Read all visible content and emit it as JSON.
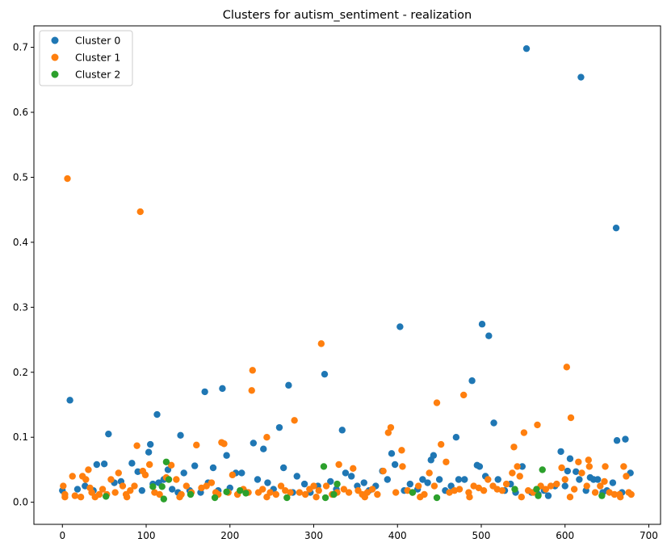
{
  "chart_data": {
    "type": "scatter",
    "title": "Clusters for autism_sentiment - realization",
    "xlabel": "",
    "ylabel": "",
    "xlim": [
      -34,
      714
    ],
    "ylim": [
      -0.034,
      0.733
    ],
    "x_ticks": [
      0,
      100,
      200,
      300,
      400,
      500,
      600,
      700
    ],
    "y_ticks": [
      0.0,
      0.1,
      0.2,
      0.3,
      0.4,
      0.5,
      0.6,
      0.7
    ],
    "grid": false,
    "legend_position": "top-left",
    "series": [
      {
        "name": "Cluster 0",
        "color": "#1f77b4",
        "points": [
          [
            0,
            0.018
          ],
          [
            9,
            0.157
          ],
          [
            18,
            0.02
          ],
          [
            27,
            0.025
          ],
          [
            37,
            0.018
          ],
          [
            41,
            0.058
          ],
          [
            50,
            0.059
          ],
          [
            55,
            0.105
          ],
          [
            62,
            0.03
          ],
          [
            70,
            0.032
          ],
          [
            83,
            0.06
          ],
          [
            90,
            0.047
          ],
          [
            95,
            0.018
          ],
          [
            103,
            0.077
          ],
          [
            105,
            0.089
          ],
          [
            108,
            0.028
          ],
          [
            113,
            0.135
          ],
          [
            115,
            0.03
          ],
          [
            121,
            0.035
          ],
          [
            126,
            0.05
          ],
          [
            131,
            0.02
          ],
          [
            138,
            0.015
          ],
          [
            141,
            0.103
          ],
          [
            145,
            0.045
          ],
          [
            152,
            0.018
          ],
          [
            158,
            0.056
          ],
          [
            165,
            0.015
          ],
          [
            170,
            0.17
          ],
          [
            174,
            0.03
          ],
          [
            180,
            0.053
          ],
          [
            186,
            0.018
          ],
          [
            191,
            0.175
          ],
          [
            196,
            0.072
          ],
          [
            200,
            0.022
          ],
          [
            207,
            0.045
          ],
          [
            214,
            0.045
          ],
          [
            220,
            0.015
          ],
          [
            228,
            0.091
          ],
          [
            233,
            0.035
          ],
          [
            240,
            0.082
          ],
          [
            245,
            0.03
          ],
          [
            252,
            0.02
          ],
          [
            259,
            0.115
          ],
          [
            264,
            0.053
          ],
          [
            270,
            0.18
          ],
          [
            275,
            0.015
          ],
          [
            280,
            0.04
          ],
          [
            289,
            0.028
          ],
          [
            296,
            0.015
          ],
          [
            305,
            0.025
          ],
          [
            313,
            0.197
          ],
          [
            320,
            0.032
          ],
          [
            327,
            0.02
          ],
          [
            334,
            0.111
          ],
          [
            338,
            0.045
          ],
          [
            345,
            0.04
          ],
          [
            352,
            0.025
          ],
          [
            360,
            0.03
          ],
          [
            366,
            0.018
          ],
          [
            374,
            0.025
          ],
          [
            382,
            0.048
          ],
          [
            388,
            0.035
          ],
          [
            393,
            0.075
          ],
          [
            397,
            0.058
          ],
          [
            403,
            0.27
          ],
          [
            408,
            0.018
          ],
          [
            415,
            0.028
          ],
          [
            424,
            0.02
          ],
          [
            430,
            0.035
          ],
          [
            436,
            0.03
          ],
          [
            440,
            0.065
          ],
          [
            443,
            0.072
          ],
          [
            450,
            0.035
          ],
          [
            457,
            0.018
          ],
          [
            464,
            0.025
          ],
          [
            470,
            0.1
          ],
          [
            473,
            0.035
          ],
          [
            480,
            0.035
          ],
          [
            489,
            0.187
          ],
          [
            495,
            0.057
          ],
          [
            498,
            0.055
          ],
          [
            501,
            0.274
          ],
          [
            505,
            0.04
          ],
          [
            509,
            0.256
          ],
          [
            515,
            0.122
          ],
          [
            520,
            0.035
          ],
          [
            528,
            0.018
          ],
          [
            535,
            0.028
          ],
          [
            541,
            0.015
          ],
          [
            549,
            0.055
          ],
          [
            554,
            0.698
          ],
          [
            560,
            0.015
          ],
          [
            568,
            0.012
          ],
          [
            575,
            0.018
          ],
          [
            580,
            0.01
          ],
          [
            588,
            0.025
          ],
          [
            595,
            0.078
          ],
          [
            600,
            0.025
          ],
          [
            603,
            0.048
          ],
          [
            606,
            0.067
          ],
          [
            613,
            0.047
          ],
          [
            617,
            0.035
          ],
          [
            619,
            0.654
          ],
          [
            625,
            0.018
          ],
          [
            630,
            0.038
          ],
          [
            634,
            0.035
          ],
          [
            639,
            0.035
          ],
          [
            645,
            0.015
          ],
          [
            650,
            0.018
          ],
          [
            657,
            0.03
          ],
          [
            661,
            0.422
          ],
          [
            662,
            0.095
          ],
          [
            668,
            0.015
          ],
          [
            672,
            0.097
          ],
          [
            678,
            0.045
          ]
        ]
      },
      {
        "name": "Cluster 1",
        "color": "#ff7f0e",
        "points": [
          [
            1,
            0.025
          ],
          [
            3,
            0.008
          ],
          [
            6,
            0.498
          ],
          [
            12,
            0.04
          ],
          [
            15,
            0.01
          ],
          [
            22,
            0.008
          ],
          [
            24,
            0.04
          ],
          [
            28,
            0.035
          ],
          [
            31,
            0.05
          ],
          [
            35,
            0.015
          ],
          [
            39,
            0.008
          ],
          [
            44,
            0.012
          ],
          [
            48,
            0.02
          ],
          [
            53,
            0.012
          ],
          [
            58,
            0.035
          ],
          [
            63,
            0.015
          ],
          [
            67,
            0.045
          ],
          [
            72,
            0.025
          ],
          [
            76,
            0.012
          ],
          [
            81,
            0.018
          ],
          [
            86,
            0.025
          ],
          [
            89,
            0.087
          ],
          [
            93,
            0.447
          ],
          [
            96,
            0.048
          ],
          [
            99,
            0.042
          ],
          [
            104,
            0.058
          ],
          [
            110,
            0.015
          ],
          [
            116,
            0.012
          ],
          [
            124,
            0.038
          ],
          [
            130,
            0.057
          ],
          [
            136,
            0.035
          ],
          [
            142,
            0.012
          ],
          [
            148,
            0.025
          ],
          [
            154,
            0.015
          ],
          [
            160,
            0.088
          ],
          [
            166,
            0.022
          ],
          [
            172,
            0.025
          ],
          [
            178,
            0.03
          ],
          [
            183,
            0.015
          ],
          [
            190,
            0.092
          ],
          [
            193,
            0.09
          ],
          [
            198,
            0.015
          ],
          [
            203,
            0.042
          ],
          [
            209,
            0.012
          ],
          [
            216,
            0.02
          ],
          [
            222,
            0.015
          ],
          [
            226,
            0.172
          ],
          [
            227,
            0.203
          ],
          [
            234,
            0.015
          ],
          [
            239,
            0.02
          ],
          [
            244,
            0.1
          ],
          [
            248,
            0.015
          ],
          [
            255,
            0.012
          ],
          [
            261,
            0.025
          ],
          [
            266,
            0.018
          ],
          [
            272,
            0.015
          ],
          [
            277,
            0.126
          ],
          [
            283,
            0.015
          ],
          [
            290,
            0.012
          ],
          [
            295,
            0.02
          ],
          [
            300,
            0.025
          ],
          [
            306,
            0.018
          ],
          [
            309,
            0.244
          ],
          [
            315,
            0.025
          ],
          [
            322,
            0.012
          ],
          [
            328,
            0.015
          ],
          [
            330,
            0.058
          ],
          [
            336,
            0.02
          ],
          [
            342,
            0.015
          ],
          [
            347,
            0.052
          ],
          [
            353,
            0.018
          ],
          [
            358,
            0.012
          ],
          [
            364,
            0.015
          ],
          [
            370,
            0.02
          ],
          [
            376,
            0.012
          ],
          [
            383,
            0.048
          ],
          [
            389,
            0.107
          ],
          [
            392,
            0.115
          ],
          [
            398,
            0.015
          ],
          [
            405,
            0.08
          ],
          [
            406,
            0.055
          ],
          [
            412,
            0.018
          ],
          [
            418,
            0.015
          ],
          [
            425,
            0.025
          ],
          [
            432,
            0.012
          ],
          [
            438,
            0.045
          ],
          [
            444,
            0.025
          ],
          [
            447,
            0.153
          ],
          [
            452,
            0.089
          ],
          [
            458,
            0.062
          ],
          [
            462,
            0.015
          ],
          [
            468,
            0.018
          ],
          [
            474,
            0.02
          ],
          [
            479,
            0.165
          ],
          [
            485,
            0.015
          ],
          [
            491,
            0.025
          ],
          [
            497,
            0.022
          ],
          [
            503,
            0.018
          ],
          [
            508,
            0.035
          ],
          [
            514,
            0.025
          ],
          [
            519,
            0.02
          ],
          [
            525,
            0.018
          ],
          [
            530,
            0.028
          ],
          [
            537,
            0.045
          ],
          [
            539,
            0.085
          ],
          [
            543,
            0.055
          ],
          [
            546,
            0.04
          ],
          [
            551,
            0.107
          ],
          [
            556,
            0.018
          ],
          [
            562,
            0.015
          ],
          [
            567,
            0.119
          ],
          [
            571,
            0.025
          ],
          [
            577,
            0.02
          ],
          [
            583,
            0.025
          ],
          [
            590,
            0.028
          ],
          [
            596,
            0.053
          ],
          [
            600,
            0.035
          ],
          [
            602,
            0.208
          ],
          [
            607,
            0.13
          ],
          [
            611,
            0.02
          ],
          [
            616,
            0.062
          ],
          [
            620,
            0.045
          ],
          [
            626,
            0.025
          ],
          [
            628,
            0.065
          ],
          [
            629,
            0.055
          ],
          [
            636,
            0.015
          ],
          [
            642,
            0.025
          ],
          [
            647,
            0.032
          ],
          [
            648,
            0.055
          ],
          [
            653,
            0.015
          ],
          [
            659,
            0.012
          ],
          [
            665,
            0.012
          ],
          [
            670,
            0.055
          ],
          [
            673,
            0.04
          ],
          [
            676,
            0.015
          ],
          [
            679,
            0.012
          ],
          [
            3,
            0.012
          ],
          [
            33,
            0.022
          ],
          [
            77,
            0.008
          ],
          [
            140,
            0.008
          ],
          [
            186,
            0.012
          ],
          [
            244,
            0.008
          ],
          [
            303,
            0.008
          ],
          [
            361,
            0.008
          ],
          [
            427,
            0.008
          ],
          [
            486,
            0.008
          ],
          [
            548,
            0.008
          ],
          [
            606,
            0.008
          ],
          [
            666,
            0.008
          ]
        ]
      },
      {
        "name": "Cluster 2",
        "color": "#2ca02c",
        "points": [
          [
            52,
            0.009
          ],
          [
            108,
            0.024
          ],
          [
            119,
            0.024
          ],
          [
            121,
            0.005
          ],
          [
            124,
            0.062
          ],
          [
            127,
            0.035
          ],
          [
            153,
            0.012
          ],
          [
            182,
            0.007
          ],
          [
            196,
            0.016
          ],
          [
            212,
            0.018
          ],
          [
            219,
            0.014
          ],
          [
            268,
            0.007
          ],
          [
            312,
            0.055
          ],
          [
            314,
            0.007
          ],
          [
            324,
            0.012
          ],
          [
            328,
            0.028
          ],
          [
            418,
            0.015
          ],
          [
            447,
            0.007
          ],
          [
            540,
            0.02
          ],
          [
            566,
            0.02
          ],
          [
            568,
            0.01
          ],
          [
            573,
            0.05
          ],
          [
            644,
            0.01
          ]
        ]
      }
    ]
  }
}
